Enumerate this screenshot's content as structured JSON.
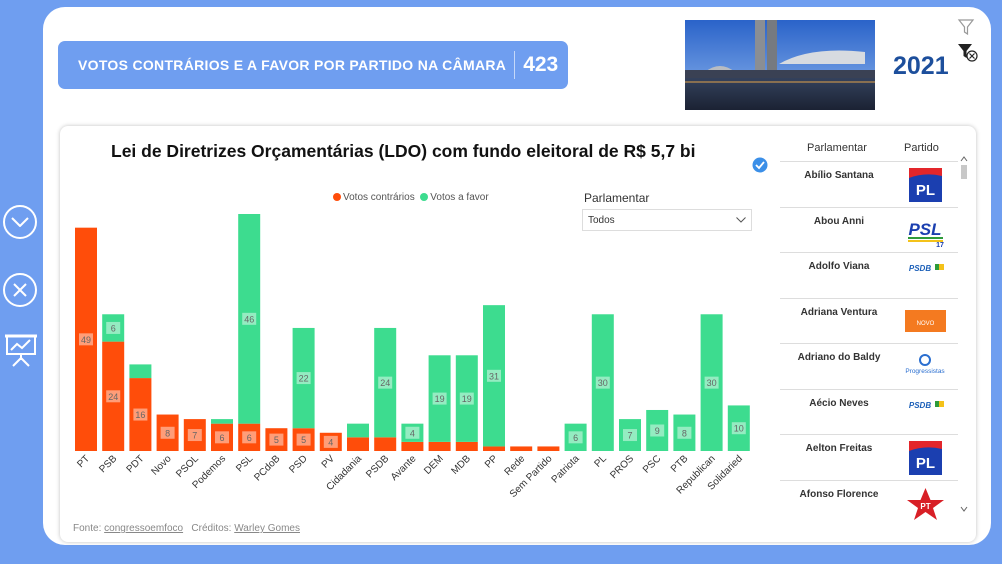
{
  "header": {
    "title": "VOTOS CONTRÁRIOS E A FAVOR POR PARTIDO NA CÂMARA",
    "count": "423"
  },
  "year": "2021",
  "chart_title": "Lei de Diretrizes Orçamentárias (LDO) com fundo eleitoral de R$ 5,7 bi",
  "slicer": {
    "label": "Parlamentar",
    "value": "Todos"
  },
  "footer": {
    "fonte_label": "Fonte:",
    "fonte": "congressoemfoco",
    "creditos_label": "Créditos:",
    "creditos": "Warley Gomes"
  },
  "table": {
    "headers": [
      "Parlamentar",
      "Partido"
    ],
    "rows": [
      {
        "name": "Abílio Santana",
        "logo": "PL"
      },
      {
        "name": "Abou Anni",
        "logo": "PSL"
      },
      {
        "name": "Adolfo Viana",
        "logo": "PSDB"
      },
      {
        "name": "Adriana Ventura",
        "logo": "NOVO"
      },
      {
        "name": "Adriano do Baldy",
        "logo": "Progressistas"
      },
      {
        "name": "Aécio Neves",
        "logo": "PSDB"
      },
      {
        "name": "Aelton Freitas",
        "logo": "PL"
      },
      {
        "name": "Afonso Florence",
        "logo": "PT"
      }
    ]
  },
  "colors": {
    "against": "#ff4d0a",
    "favor": "#3ddc8f",
    "accent": "#6f9ef0",
    "year": "#1d4f9c"
  },
  "chart_data": {
    "type": "bar",
    "stacked": true,
    "legend": "top",
    "categories": [
      "PT",
      "PSB",
      "PDT",
      "Novo",
      "PSOL",
      "Podemos",
      "PSL",
      "PCdoB",
      "PSD",
      "PV",
      "Cidadania",
      "PSDB",
      "Avante",
      "DEM",
      "MDB",
      "PP",
      "Rede",
      "Sem Partido",
      "Patriota",
      "PL",
      "PROS",
      "PSC",
      "PTB",
      "Republican",
      "Solidaried"
    ],
    "series": [
      {
        "name": "Votos contrários",
        "color": "#ff4d0a",
        "values": [
          49,
          24,
          16,
          8,
          7,
          6,
          6,
          5,
          5,
          4,
          3,
          3,
          2,
          2,
          2,
          1,
          1,
          1,
          0,
          0,
          0,
          0,
          0,
          0,
          0
        ],
        "labels": [
          "49",
          "24",
          "16",
          "8",
          "7",
          "6",
          "6",
          "5",
          "5",
          "4",
          "",
          "",
          "",
          "",
          "",
          "",
          "",
          "",
          "",
          "",
          "",
          "",
          "",
          "",
          ""
        ]
      },
      {
        "name": "Votos a favor",
        "color": "#3ddc8f",
        "values": [
          0,
          6,
          3,
          0,
          0,
          1,
          46,
          0,
          22,
          0,
          3,
          24,
          4,
          19,
          19,
          31,
          0,
          0,
          6,
          30,
          7,
          9,
          8,
          30,
          10
        ],
        "labels": [
          "",
          "6",
          "",
          "",
          "",
          "",
          "46",
          "",
          "22",
          "",
          "",
          "24",
          "4",
          "19",
          "19",
          "31",
          "",
          "",
          "6",
          "30",
          "7",
          "9",
          "8",
          "30",
          "10"
        ]
      }
    ],
    "ylim": [
      0,
      52
    ]
  }
}
